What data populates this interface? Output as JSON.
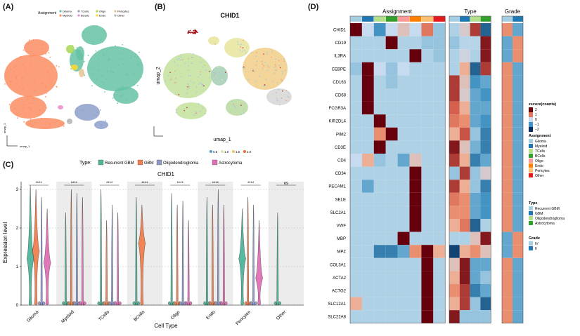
{
  "panels": {
    "A": "(A)",
    "B": "(B)",
    "C": "(C)",
    "D": "(D)"
  },
  "colors": {
    "Glioma": "#66c2a5",
    "Myeloid": "#fc8d62",
    "TCells": "#8da0cb",
    "BCells": "#e78ac3",
    "Oligo": "#a6d854",
    "Endo": "#ffd92f",
    "Pericytes": "#e5c494",
    "Other": "#b3b3b3",
    "RecurrentGBM": "#4fb49a",
    "GBM": "#f07f4f",
    "Oligodendroglioma": "#8d9bc9",
    "Astrocytoma": "#e06fb6"
  },
  "umapA": {
    "legend_title": "Assignment",
    "legend_items": [
      "Glioma",
      "TCells",
      "Oligo",
      "Pericytes",
      "Myeloid",
      "BCells",
      "Endo",
      "Other"
    ],
    "axis_x": "umap_1",
    "axis_y": "umap_2"
  },
  "umapB": {
    "title": "CHID1",
    "axis_x": "umap_1",
    "axis_y": "umap_2",
    "scale_ticks": [
      "0.5",
      "1.0",
      "1.5",
      "2.0"
    ]
  },
  "chart_data": [
    {
      "type": "violin",
      "title": "CHID1",
      "xlabel": "Cell Type",
      "ylabel": "Expression level",
      "ylim": [
        0,
        3.2
      ],
      "yticks": [
        0,
        1,
        2,
        3
      ],
      "legend_title": "Type:",
      "series": [
        {
          "name": "Recurrent GBM",
          "color": "#4fb49a"
        },
        {
          "name": "GBM",
          "color": "#f07f4f"
        },
        {
          "name": "Oligodendroglioma",
          "color": "#8d9bc9"
        },
        {
          "name": "Astrocytoma",
          "color": "#e06fb6"
        }
      ],
      "categories": [
        "Glioma",
        "Myeloid",
        "TCells",
        "BCells",
        "Oligo",
        "Endo",
        "Pericytes",
        "Other"
      ],
      "significance": [
        "****",
        "****",
        "****",
        "****",
        "****",
        "****",
        "****",
        "ns"
      ],
      "violins": [
        [
          {
            "mode": 1.2,
            "max": 3.1
          },
          {
            "mode": 1.4,
            "max": 3.0
          },
          {
            "mode": 0.1,
            "max": 2.8
          },
          {
            "mode": 1.1,
            "max": 2.5
          }
        ],
        [
          {
            "mode": 0.1,
            "max": 2.4
          },
          {
            "mode": 0.1,
            "max": 3.0
          },
          {
            "mode": 0.1,
            "max": 2.9
          },
          {
            "mode": 0.1,
            "max": 2.8
          }
        ],
        [
          {
            "mode": 0.1,
            "max": 3.0
          },
          {
            "mode": 0.1,
            "max": 2.2
          },
          {
            "mode": 0.1,
            "max": 2.6
          },
          {
            "mode": 0.1,
            "max": 2.4
          }
        ],
        [
          {
            "mode": 0.1,
            "max": 2.8
          },
          {
            "mode": 1.6,
            "max": 2.6
          },
          {
            "mode": null,
            "max": 0
          },
          {
            "mode": null,
            "max": 0
          }
        ],
        [
          {
            "mode": 0.1,
            "max": 2.9
          },
          {
            "mode": 0.1,
            "max": 2.6
          },
          {
            "mode": 0.1,
            "max": 2.7
          },
          {
            "mode": 0.1,
            "max": 2.2
          }
        ],
        [
          {
            "mode": 0.1,
            "max": 2.8
          },
          {
            "mode": 0.1,
            "max": 2.6
          },
          {
            "mode": 0.1,
            "max": 3.0
          },
          {
            "mode": 0.1,
            "max": 2.6
          }
        ],
        [
          {
            "mode": 1.2,
            "max": 2.5
          },
          {
            "mode": 0.1,
            "max": 2.8
          },
          {
            "mode": 0.1,
            "max": 2.6
          },
          {
            "mode": 0.7,
            "max": 2.2
          }
        ],
        [
          {
            "mode": 0.1,
            "max": 2.4
          },
          {
            "mode": null,
            "max": 0
          },
          {
            "mode": null,
            "max": 0
          },
          {
            "mode": null,
            "max": 0
          }
        ]
      ]
    },
    {
      "type": "heatmap",
      "group_titles": [
        "Assignment",
        "Type",
        "Grade"
      ],
      "rows": [
        "CHID1",
        "CD19",
        "IL3RA",
        "CEBPE",
        "CD163",
        "CD68",
        "FCGR3A",
        "KIR2DL4",
        "PIM2",
        "CD3E",
        "CD4",
        "CD34",
        "PECAM1",
        "SELE",
        "SLC2A1",
        "VWF",
        "MBP",
        "MPZ",
        "COL3A1",
        "ACTA2",
        "ACTG2",
        "SLC12A1",
        "SLC22A8"
      ],
      "assignment_columns": [
        "Glioma",
        "Myeloid",
        "TCells",
        "BCells",
        "Oligo",
        "Endo",
        "Pericytes",
        "Other"
      ],
      "type_columns": [
        "Recurrent GBM",
        "GBM",
        "Oligodendroglioma",
        "Astrocytoma"
      ],
      "grade_columns": [
        "IV",
        "II"
      ],
      "assignment_values": [
        [
          2,
          0,
          -1,
          0,
          0.3,
          0,
          1,
          -0.5
        ],
        [
          -0.3,
          -0.3,
          -0.3,
          2,
          -0.3,
          -0.3,
          -0.5,
          -0.5
        ],
        [
          -0.3,
          -0.3,
          -0.3,
          -0.3,
          -0.3,
          2,
          -0.3,
          -0.5
        ],
        [
          -0.5,
          2,
          0,
          -0.5,
          0,
          -0.3,
          -0.3,
          -0.3
        ],
        [
          -0.3,
          2,
          -0.3,
          -0.5,
          -0.3,
          -0.3,
          -0.3,
          -0.3
        ],
        [
          -0.3,
          2,
          -0.3,
          -0.3,
          -0.3,
          -0.3,
          -0.3,
          -0.3
        ],
        [
          -0.3,
          2,
          -0.3,
          -0.3,
          -0.3,
          -0.3,
          -0.3,
          -0.3
        ],
        [
          -0.3,
          -0.3,
          2,
          -0.3,
          -0.3,
          -0.3,
          -0.3,
          -0.3
        ],
        [
          -0.3,
          -0.3,
          0.8,
          2,
          -0.3,
          -0.3,
          -0.3,
          -0.3
        ],
        [
          -0.3,
          -0.3,
          2,
          -0.3,
          -0.3,
          -0.3,
          -0.3,
          -0.3
        ],
        [
          0,
          0.5,
          -0.5,
          -0.3,
          -0.8,
          0.3,
          -0.3,
          -0.3
        ],
        [
          -0.3,
          -0.3,
          -0.3,
          -0.3,
          -0.3,
          2,
          -0.3,
          -0.3
        ],
        [
          -0.3,
          -0.8,
          -0.3,
          -0.3,
          -0.3,
          2,
          -0.3,
          -0.3
        ],
        [
          -0.3,
          -0.3,
          -0.3,
          -0.3,
          -0.3,
          2,
          -0.3,
          -0.3
        ],
        [
          -0.3,
          -0.3,
          -0.3,
          -0.3,
          -0.3,
          2,
          -0.3,
          -0.3
        ],
        [
          -0.3,
          -0.3,
          -0.3,
          -0.3,
          -0.3,
          2,
          -0.3,
          -0.3
        ],
        [
          -0.3,
          -0.3,
          -0.3,
          -0.3,
          2,
          -0.3,
          -0.3,
          -0.3
        ],
        [
          -0.3,
          -0.3,
          -1.2,
          -1.2,
          -0.8,
          0.8,
          2,
          0.5
        ],
        [
          -0.3,
          -0.3,
          -0.3,
          -0.3,
          -0.3,
          -0.3,
          2,
          -0.3
        ],
        [
          -0.3,
          -0.3,
          -0.3,
          -0.3,
          -0.3,
          -0.3,
          2,
          -0.3
        ],
        [
          -0.3,
          -0.3,
          -0.3,
          -0.3,
          -0.3,
          -0.3,
          2,
          -0.3
        ],
        [
          0.5,
          -0.3,
          -0.3,
          -0.3,
          -0.3,
          -0.3,
          2,
          -0.3
        ],
        [
          -0.3,
          -0.3,
          -0.3,
          -0.3,
          -0.3,
          -0.3,
          2,
          -0.3
        ]
      ],
      "type_values": [
        [
          -0.3,
          0.2,
          1.5,
          -1.5
        ],
        [
          -0.5,
          -0.2,
          -0.2,
          1.8
        ],
        [
          -0.3,
          0.1,
          -0.3,
          1.8
        ],
        [
          -0.3,
          0.5,
          -1.5,
          1.5
        ],
        [
          1.5,
          0.3,
          -1.0,
          -0.8
        ],
        [
          1.5,
          0.2,
          -0.8,
          -1.0
        ],
        [
          1.2,
          0.5,
          -0.8,
          -0.8
        ],
        [
          1.0,
          0.8,
          -0.8,
          -1.0
        ],
        [
          0.5,
          1.3,
          -0.5,
          -1.2
        ],
        [
          1.8,
          0.3,
          -0.7,
          -1.2
        ],
        [
          1.5,
          0.5,
          -1.2,
          -0.8
        ],
        [
          -0.5,
          1.5,
          -0.5,
          0.2
        ],
        [
          1.5,
          0.5,
          -0.5,
          -1.2
        ],
        [
          1.0,
          0.8,
          -0.8,
          -1.0
        ],
        [
          0.8,
          0.8,
          -0.8,
          -1.0
        ],
        [
          0.5,
          1.0,
          -1.5,
          -0.3
        ],
        [
          -0.3,
          -0.3,
          0.3,
          1.8
        ],
        [
          -1.8,
          0.5,
          0.8,
          0.3
        ],
        [
          0.3,
          1.8,
          -0.8,
          -0.8
        ],
        [
          0.5,
          1.8,
          -0.8,
          -0.5
        ],
        [
          0.8,
          1.5,
          -1.2,
          -0.8
        ],
        [
          0.5,
          1.5,
          -0.5,
          -1.5
        ],
        [
          1.8,
          -0.5,
          -0.5,
          -0.5
        ]
      ],
      "grade_values": [
        [
          0.8,
          -0.8
        ],
        [
          -0.8,
          0.8
        ],
        [
          -0.8,
          0.8
        ],
        [
          0.8,
          -0.8
        ],
        [
          0.8,
          -0.8
        ],
        [
          0.8,
          -0.8
        ],
        [
          0.8,
          -0.8
        ],
        [
          0.8,
          -0.8
        ],
        [
          0.8,
          -0.8
        ],
        [
          0.8,
          -0.8
        ],
        [
          0.8,
          -0.8
        ],
        [
          0.8,
          -0.8
        ],
        [
          0.8,
          -0.8
        ],
        [
          0.8,
          -0.8
        ],
        [
          0.8,
          -0.8
        ],
        [
          0.8,
          -0.8
        ],
        [
          -0.8,
          0.8
        ],
        [
          -0.8,
          0.8
        ],
        [
          0.8,
          -0.8
        ],
        [
          0.8,
          -0.8
        ],
        [
          0.8,
          -0.8
        ],
        [
          0.8,
          -0.8
        ],
        [
          0.8,
          -0.8
        ]
      ],
      "scale_title": "zscore(counts)",
      "scale_ticks": [
        "2",
        "1",
        "0",
        "−1",
        "−2"
      ],
      "legend_assignment_title": "Assignment",
      "legend_assignment": [
        "Glioma",
        "Myeloid",
        "TCells",
        "BCells",
        "Oligo",
        "Endo",
        "Pericytes",
        "Other"
      ],
      "legend_type_title": "Type",
      "legend_type": [
        "Recurrent GBM",
        "GBM",
        "Oligodendroglioma",
        "Astrocytoma"
      ],
      "legend_grade_title": "Grade",
      "legend_grade": [
        "IV",
        "II"
      ]
    }
  ],
  "heat_legend_colors": {
    "assignment": [
      "#a6cee3",
      "#1f78b4",
      "#b2df8a",
      "#33a02c",
      "#fb9a99",
      "#ff7f00",
      "#fdbf6f",
      "#e31a1c"
    ],
    "type": [
      "#a6cee3",
      "#1f78b4",
      "#b2df8a",
      "#33a02c"
    ],
    "grade": [
      "#a6cee3",
      "#1f78b4"
    ]
  }
}
